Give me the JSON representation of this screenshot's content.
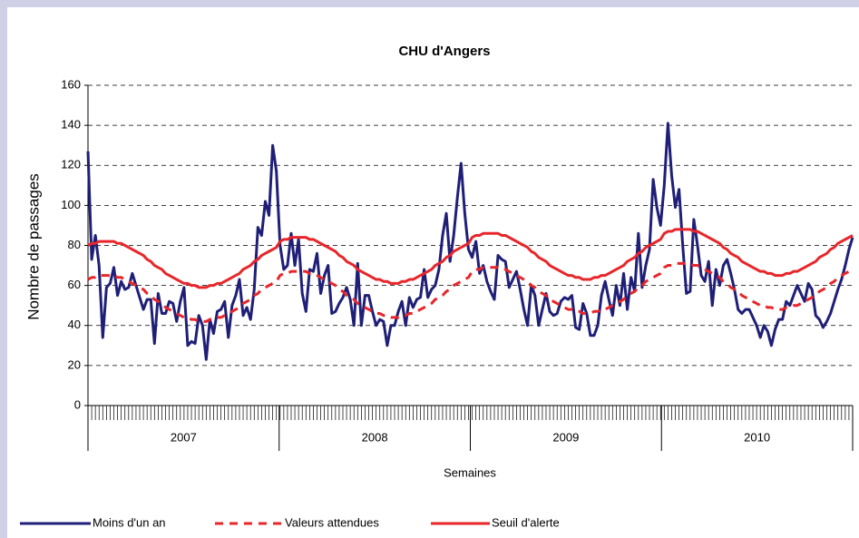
{
  "chart_data": {
    "type": "line",
    "title": "CHU d'Angers",
    "y_label": "Nombre de passages",
    "x_label": "Semaines",
    "years": [
      "2007",
      "2008",
      "2009",
      "2010"
    ],
    "ylim": [
      0,
      160
    ],
    "yticks": [
      0,
      20,
      40,
      60,
      80,
      100,
      120,
      140,
      160
    ],
    "grid": true,
    "legend": "bottom",
    "series": [
      {
        "name": "Moins d'un an",
        "color": "#1f1f78",
        "dashed": false,
        "values": [
          127,
          73,
          85,
          70,
          34,
          59,
          61,
          69,
          55,
          62,
          58,
          59,
          66,
          60,
          54,
          48,
          53,
          53,
          31,
          56,
          46,
          46,
          52,
          51,
          42,
          52,
          59,
          30,
          32,
          31,
          45,
          40,
          23,
          43,
          36,
          47,
          48,
          52,
          34,
          50,
          55,
          63,
          45,
          49,
          43,
          58,
          89,
          85,
          102,
          95,
          130,
          117,
          80,
          68,
          70,
          86,
          70,
          83,
          56,
          47,
          68,
          67,
          76,
          56,
          65,
          70,
          46,
          47,
          51,
          54,
          59,
          53,
          40,
          71,
          40,
          55,
          55,
          47,
          40,
          43,
          42,
          30,
          40,
          40,
          47,
          52,
          40,
          54,
          49,
          53,
          54,
          68,
          54,
          58,
          60,
          68,
          85,
          96,
          72,
          85,
          104,
          121,
          96,
          78,
          74,
          82,
          66,
          70,
          62,
          57,
          53,
          75,
          73,
          72,
          59,
          63,
          67,
          58,
          48,
          40,
          60,
          55,
          40,
          48,
          56,
          47,
          45,
          46,
          52,
          54,
          53,
          55,
          39,
          38,
          51,
          46,
          35,
          35,
          40,
          55,
          62,
          53,
          45,
          60,
          50,
          66,
          48,
          64,
          57,
          86,
          59,
          70,
          78,
          113,
          99,
          90,
          110,
          141,
          115,
          99,
          108,
          80,
          56,
          57,
          93,
          80,
          65,
          62,
          72,
          50,
          68,
          60,
          70,
          73,
          66,
          58,
          48,
          46,
          48,
          48,
          44,
          40,
          34,
          40,
          37,
          30,
          38,
          43,
          43,
          52,
          50,
          55,
          60,
          56,
          52,
          61,
          58,
          45,
          43,
          39,
          42,
          46,
          52,
          58,
          63,
          70,
          78,
          84
        ]
      },
      {
        "name": "Valeurs attendues",
        "color": "#e8262a",
        "dashed": true,
        "values": [
          63,
          64,
          64,
          65,
          65,
          65,
          65,
          65,
          64,
          64,
          63,
          62,
          61,
          60,
          59,
          58,
          56,
          55,
          53,
          52,
          51,
          49,
          48,
          47,
          46,
          45,
          44,
          44,
          43,
          43,
          42,
          42,
          42,
          43,
          43,
          44,
          44,
          45,
          46,
          47,
          48,
          49,
          51,
          52,
          53,
          55,
          56,
          58,
          59,
          60,
          61,
          62,
          65,
          66,
          66,
          67,
          67,
          67,
          67,
          67,
          66,
          66,
          65,
          64,
          63,
          62,
          61,
          60,
          58,
          57,
          55,
          54,
          53,
          51,
          50,
          49,
          48,
          47,
          46,
          46,
          45,
          45,
          44,
          44,
          44,
          45,
          45,
          46,
          46,
          47,
          48,
          49,
          50,
          51,
          53,
          54,
          55,
          57,
          58,
          60,
          61,
          62,
          63,
          64,
          67,
          68,
          68,
          69,
          69,
          69,
          69,
          69,
          68,
          68,
          67,
          66,
          65,
          64,
          63,
          62,
          60,
          59,
          57,
          56,
          55,
          53,
          52,
          51,
          50,
          49,
          48,
          48,
          47,
          47,
          46,
          46,
          46,
          47,
          47,
          48,
          48,
          49,
          50,
          51,
          52,
          53,
          55,
          56,
          57,
          59,
          60,
          62,
          63,
          64,
          65,
          66,
          69,
          70,
          70,
          71,
          71,
          71,
          71,
          71,
          70,
          70,
          69,
          68,
          67,
          66,
          65,
          64,
          62,
          61,
          59,
          58,
          57,
          55,
          54,
          53,
          52,
          51,
          50,
          50,
          49,
          49,
          48,
          48,
          48,
          49,
          49,
          50,
          50,
          51,
          52,
          53,
          54,
          55,
          57,
          58,
          59,
          61,
          62,
          64,
          65,
          66,
          67,
          68
        ]
      },
      {
        "name": "Seuil d'alerte",
        "color": "#e8262a",
        "dashed": false,
        "values": [
          80,
          81,
          81,
          82,
          82,
          82,
          82,
          82,
          81,
          81,
          80,
          79,
          78,
          77,
          76,
          75,
          73,
          72,
          70,
          69,
          68,
          66,
          65,
          64,
          63,
          62,
          61,
          61,
          60,
          60,
          59,
          59,
          59,
          60,
          60,
          61,
          61,
          62,
          63,
          64,
          65,
          66,
          68,
          69,
          70,
          72,
          73,
          75,
          76,
          77,
          78,
          79,
          82,
          83,
          83,
          84,
          84,
          84,
          84,
          84,
          83,
          83,
          82,
          81,
          80,
          79,
          78,
          77,
          75,
          74,
          72,
          71,
          70,
          68,
          67,
          66,
          65,
          64,
          63,
          63,
          62,
          62,
          61,
          61,
          61,
          62,
          62,
          63,
          63,
          64,
          65,
          66,
          67,
          68,
          70,
          71,
          72,
          74,
          75,
          77,
          78,
          79,
          80,
          81,
          84,
          85,
          85,
          86,
          86,
          86,
          86,
          86,
          85,
          85,
          84,
          83,
          82,
          81,
          80,
          79,
          77,
          76,
          74,
          73,
          72,
          70,
          69,
          68,
          67,
          66,
          65,
          65,
          64,
          64,
          63,
          63,
          63,
          64,
          64,
          65,
          65,
          66,
          67,
          68,
          69,
          70,
          72,
          73,
          74,
          76,
          77,
          79,
          80,
          81,
          82,
          83,
          86,
          87,
          87,
          88,
          88,
          88,
          88,
          88,
          87,
          87,
          86,
          85,
          84,
          83,
          82,
          81,
          79,
          78,
          76,
          75,
          74,
          72,
          71,
          70,
          69,
          68,
          67,
          67,
          66,
          66,
          65,
          65,
          65,
          66,
          66,
          67,
          67,
          68,
          69,
          70,
          71,
          72,
          74,
          75,
          76,
          78,
          79,
          81,
          82,
          83,
          84,
          85
        ]
      }
    ]
  }
}
